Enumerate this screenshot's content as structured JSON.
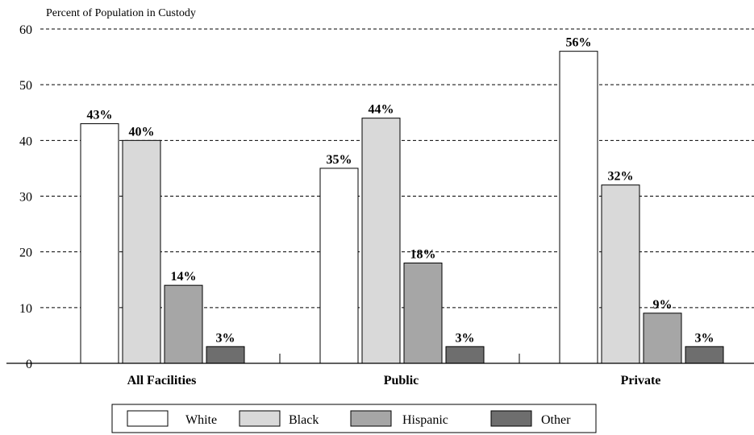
{
  "chart_data": {
    "type": "bar",
    "ylabel": "Percent of Population in Custody",
    "categories": [
      "All Facilities",
      "Public",
      "Private"
    ],
    "ylim": [
      0,
      60
    ],
    "yticks": [
      0,
      10,
      20,
      30,
      40,
      50,
      60
    ],
    "grid": true,
    "legend_position": "bottom",
    "series": [
      {
        "name": "White",
        "values": [
          43,
          35,
          56
        ],
        "labels": [
          "43%",
          "35%",
          "56%"
        ],
        "color": "#ffffff"
      },
      {
        "name": "Black",
        "values": [
          40,
          44,
          32
        ],
        "labels": [
          "40%",
          "44%",
          "32%"
        ],
        "color": "#d9d9d9"
      },
      {
        "name": "Hispanic",
        "values": [
          14,
          18,
          9
        ],
        "labels": [
          "14%",
          "18%",
          "9%"
        ],
        "color": "#a6a6a6"
      },
      {
        "name": "Other",
        "values": [
          3,
          3,
          3
        ],
        "labels": [
          "3%",
          "3%",
          "3%"
        ],
        "color": "#6e6e6e"
      }
    ]
  }
}
